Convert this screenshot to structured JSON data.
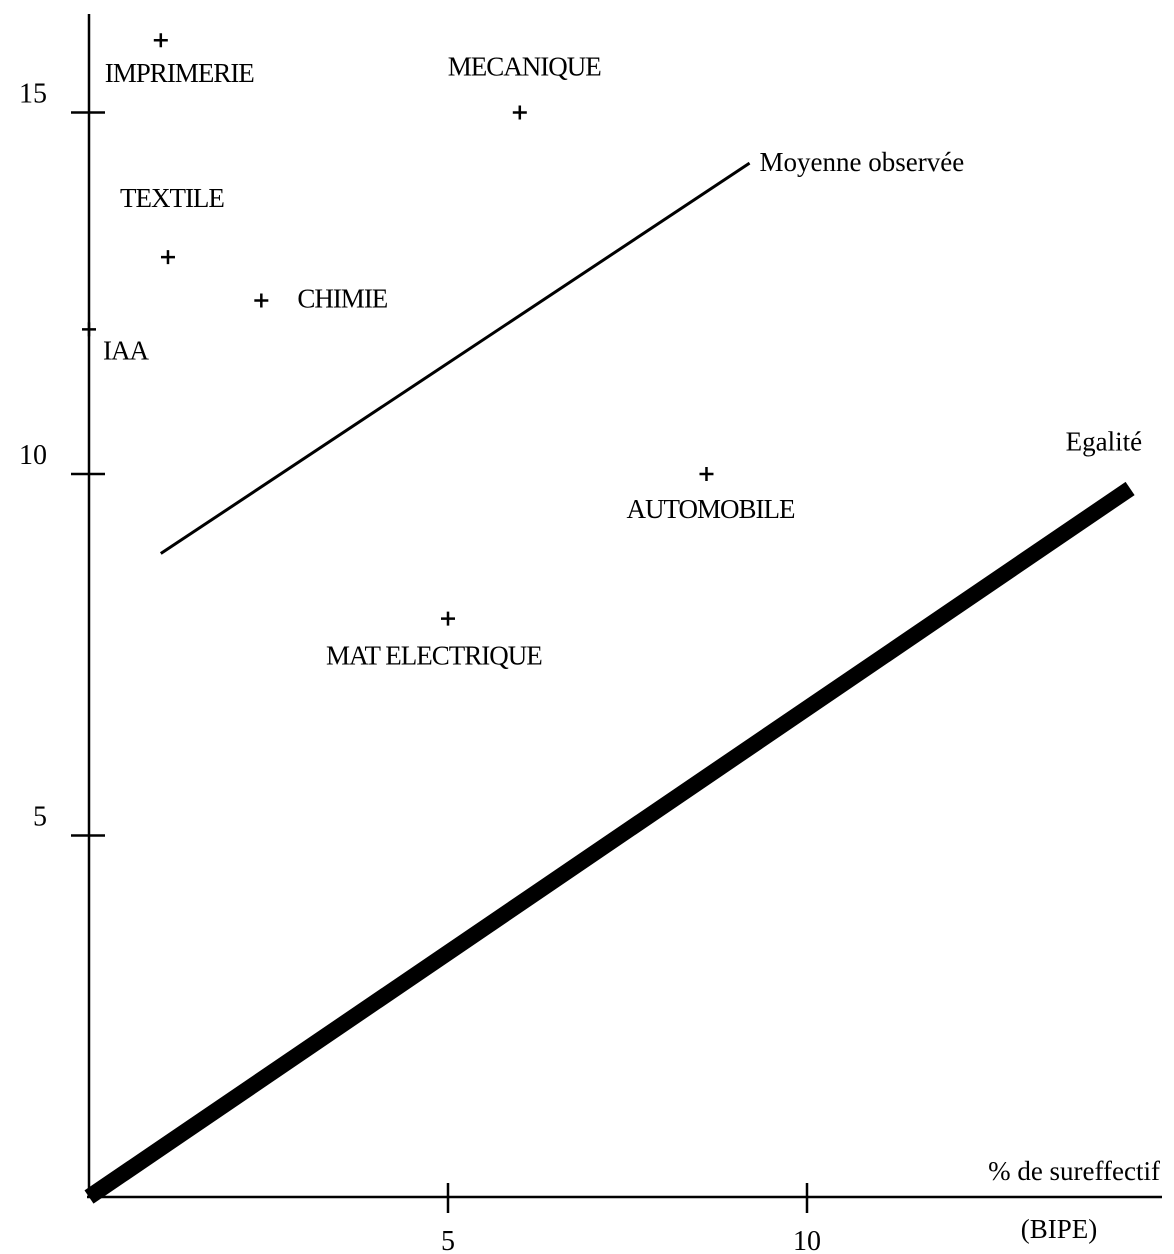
{
  "chart_data": {
    "type": "scatter",
    "title": "",
    "xlabel": "% de sureffectif",
    "source": "(BIPE)",
    "xlim": [
      0,
      14.5
    ],
    "ylim": [
      0,
      16
    ],
    "x_ticks": [
      "5",
      "10"
    ],
    "y_ticks": [
      "5",
      "10",
      "15"
    ],
    "points": [
      {
        "label": "IMPRIMERIE",
        "x": 1.0,
        "y": 16.0
      },
      {
        "label": "MECANIQUE",
        "x": 6.0,
        "y": 15.0
      },
      {
        "label": "TEXTILE",
        "x": 1.1,
        "y": 13.0
      },
      {
        "label": "CHIMIE",
        "x": 2.4,
        "y": 12.4
      },
      {
        "label": "IAA",
        "x": 0.0,
        "y": 12.0
      },
      {
        "label": "AUTOMOBILE",
        "x": 8.6,
        "y": 10.0
      },
      {
        "label": "MAT ELECTRIQUE",
        "x": 5.0,
        "y": 8.0
      }
    ],
    "lines": [
      {
        "label": "Moyenne observée",
        "x": [
          1.0,
          9.2
        ],
        "y": [
          8.9,
          14.3
        ]
      },
      {
        "label": "Egalité",
        "x": [
          0.0,
          14.5
        ],
        "y": [
          0.0,
          9.8
        ]
      }
    ],
    "grid": false,
    "legend": "none"
  }
}
